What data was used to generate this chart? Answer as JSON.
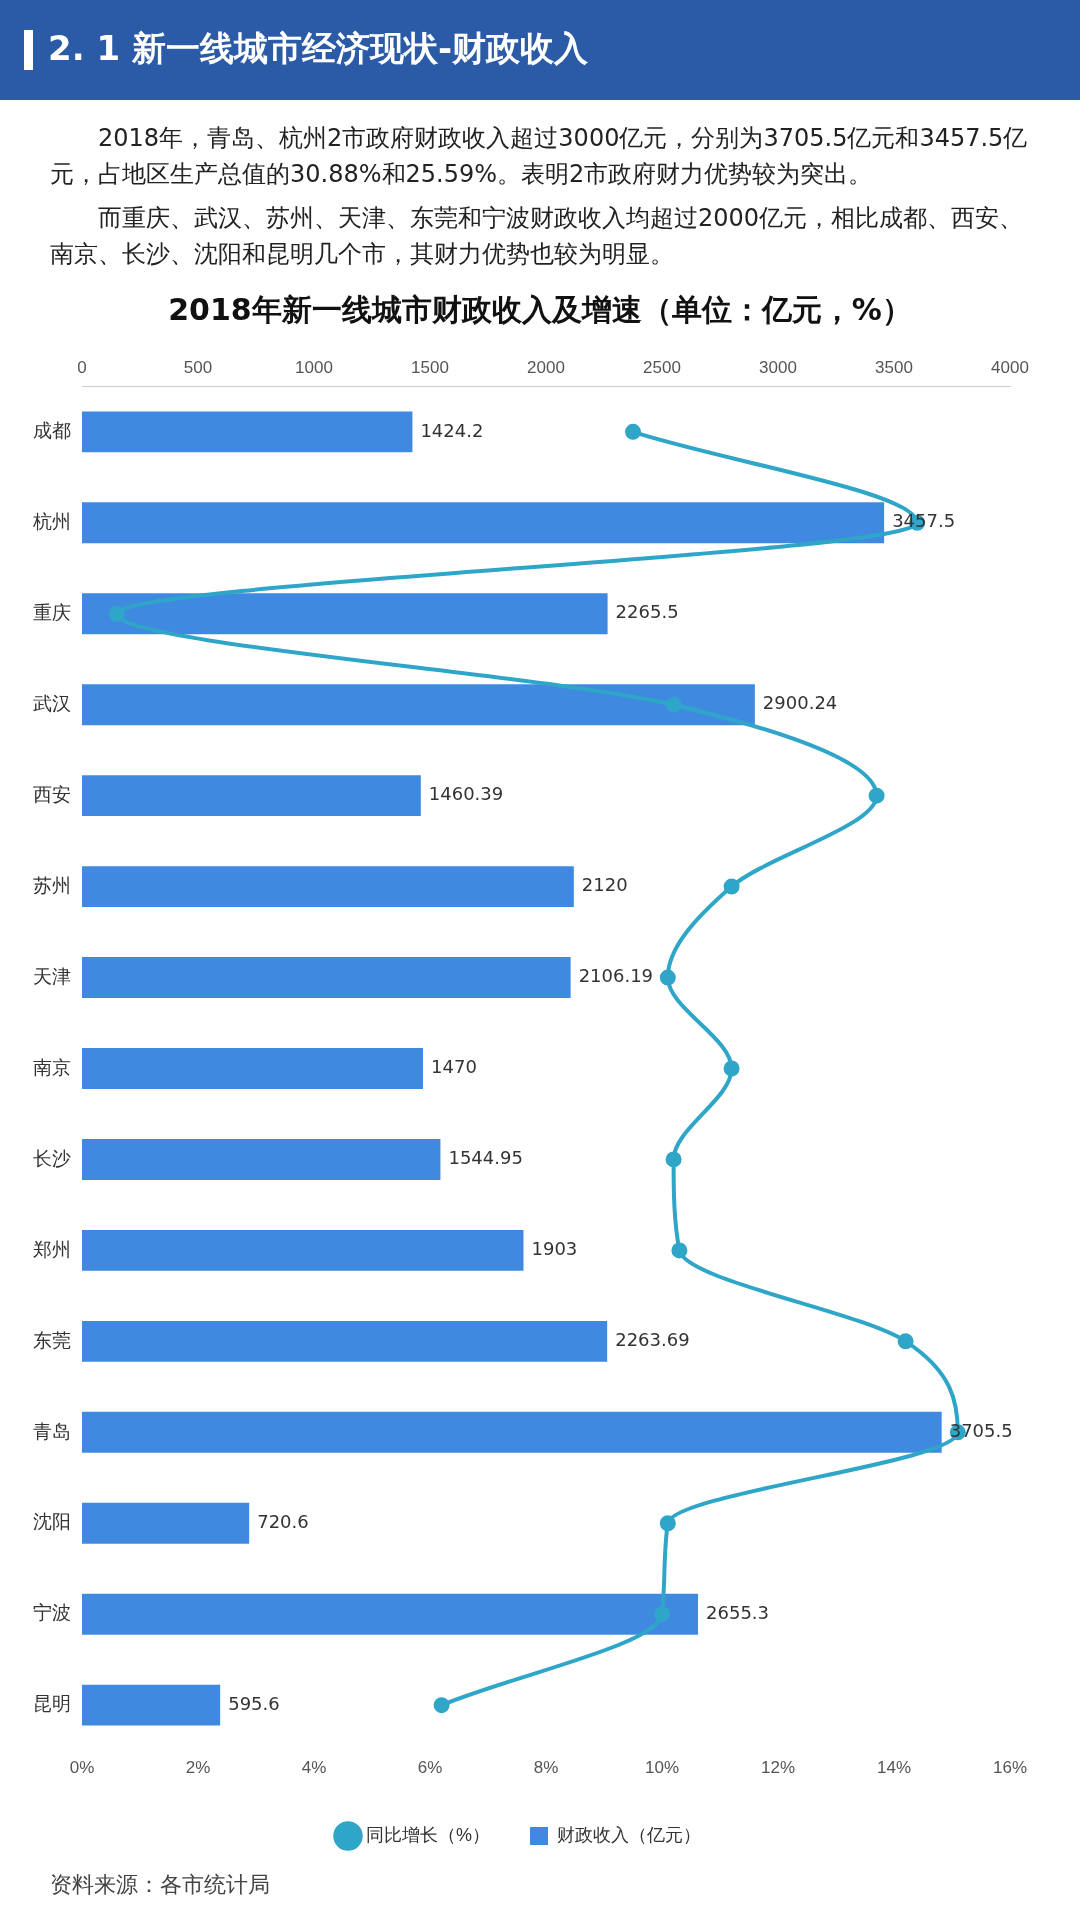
{
  "chart_data": {
    "type": "bar",
    "orientation": "horizontal",
    "title": "2018年新一线城市财政收入及增速（单位：亿元，%）",
    "categories": [
      "成都",
      "杭州",
      "重庆",
      "武汉",
      "西安",
      "苏州",
      "天津",
      "南京",
      "长沙",
      "郑州",
      "东莞",
      "青岛",
      "沈阳",
      "宁波",
      "昆明"
    ],
    "series": [
      {
        "name": "财政收入（亿元）",
        "color": "#3f8ae0",
        "values": [
          1424.2,
          3457.5,
          2265.5,
          2900.24,
          1460.39,
          2120,
          2106.19,
          1470,
          1544.95,
          1903,
          2263.69,
          3705.5,
          720.6,
          2655.3,
          595.6
        ],
        "value_labels": [
          "1424.2",
          "3457.5",
          "2265.5",
          "2900.24",
          "1460.39",
          "2120",
          "2106.19",
          "1470",
          "1544.95",
          "1903",
          "2263.69",
          "3705.5",
          "720.6",
          "2655.3",
          "595.6"
        ]
      },
      {
        "name": "同比增长（%）",
        "type": "line",
        "axis": "x2",
        "color": "#2fa6c8",
        "values": [
          9.5,
          14.4,
          0.6,
          10.2,
          13.7,
          11.2,
          10.1,
          11.2,
          10.2,
          10.3,
          14.2,
          15.1,
          10.1,
          10.0,
          6.2
        ]
      }
    ],
    "xlim": [
      0,
      4000
    ],
    "xticks": [
      0,
      500,
      1000,
      1500,
      2000,
      2500,
      3000,
      3500,
      4000
    ],
    "x2lim": [
      0,
      16
    ],
    "x2ticks": [
      {
        "value": 0,
        "label": "0%"
      },
      {
        "value": 2,
        "label": "2%"
      },
      {
        "value": 4,
        "label": "4%"
      },
      {
        "value": 6,
        "label": "6%"
      },
      {
        "value": 8,
        "label": "8%"
      },
      {
        "value": 10,
        "label": "10%"
      },
      {
        "value": 12,
        "label": "12%"
      },
      {
        "value": 14,
        "label": "14%"
      },
      {
        "value": 16,
        "label": "16%"
      }
    ],
    "grid": false,
    "legend": "bottom",
    "marker": "circle",
    "line_style": "solid",
    "annotations": [
      "2. 1  新一线城市经济现状-财政收入",
      "2018年，青岛、杭州2市政府财政收入超过3000亿元，分别为3705.5亿元和3457.5亿元，占地区生产总值的30.88%和25.59%。表明2市政府财力优势较为突出。",
      "而重庆、武汉、苏州、天津、东莞和宁波财政收入均超过2000亿元，相比成都、西安、南京、长沙、沈阳和昆明几个市，其财力优势也较为明显。",
      "资料来源：各市统计局"
    ]
  }
}
